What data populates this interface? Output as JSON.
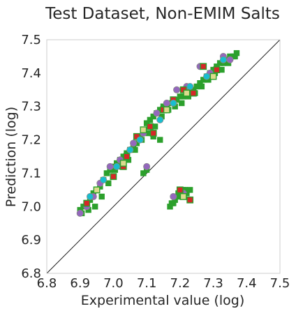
{
  "chart_data": {
    "type": "scatter",
    "title": "Test Dataset, Non-EMIM Salts",
    "xlabel": "Experimental value (log)",
    "ylabel": "Prediction (log)",
    "xlim": [
      6.8,
      7.5
    ],
    "ylim": [
      6.8,
      7.5
    ],
    "xticks": [
      "6.8",
      "6.9",
      "7.0",
      "7.1",
      "7.2",
      "7.3",
      "7.4",
      "7.5"
    ],
    "yticks": [
      "6.8",
      "6.9",
      "7.0",
      "7.1",
      "7.2",
      "7.3",
      "7.4",
      "7.5"
    ],
    "grid": false,
    "reference_line": {
      "x": [
        6.8,
        7.5
      ],
      "y": [
        6.8,
        7.5
      ]
    },
    "colors": {
      "green": "#2ca02c",
      "purple": "#9467bd",
      "red": "#d62728",
      "cyan": "#17becf",
      "lightyellow": "#dbdb8d"
    },
    "series": [
      {
        "color": "#2ca02c",
        "marker": "square",
        "x": [
          6.9,
          6.91,
          6.92,
          6.93,
          6.94,
          6.95,
          6.96,
          6.97,
          6.98,
          6.99,
          7.0,
          7.01,
          7.02,
          7.03,
          7.04,
          7.05,
          7.06,
          7.07,
          7.08,
          7.09,
          7.1,
          7.11,
          7.12,
          7.13,
          7.14,
          7.15,
          7.16,
          7.17,
          7.18,
          7.19,
          7.2,
          7.21,
          7.22,
          7.23,
          7.24,
          7.25,
          7.26,
          7.27,
          7.28,
          7.29,
          7.3,
          7.31,
          7.32,
          7.33,
          7.34,
          7.35,
          7.36,
          7.37,
          6.905,
          6.925,
          6.945,
          6.965,
          6.985,
          7.005,
          7.025,
          7.045,
          7.065,
          7.085,
          7.105,
          7.125,
          7.145,
          7.165,
          7.185,
          7.205,
          7.225,
          7.245,
          7.265,
          7.285,
          7.305,
          7.325,
          7.345,
          7.365,
          7.17,
          7.18,
          7.19,
          7.2,
          7.21,
          7.22,
          7.23,
          7.175,
          7.185,
          7.195,
          7.205,
          7.215,
          7.09,
          7.1,
          7.12,
          7.14
        ],
        "y": [
          6.99,
          7.0,
          7.01,
          7.02,
          7.04,
          7.05,
          7.06,
          7.08,
          7.1,
          7.11,
          7.12,
          7.13,
          7.14,
          7.15,
          7.16,
          7.17,
          7.18,
          7.19,
          7.21,
          7.23,
          7.25,
          7.26,
          7.27,
          7.28,
          7.29,
          7.3,
          7.3,
          7.31,
          7.32,
          7.32,
          7.33,
          7.33,
          7.34,
          7.35,
          7.35,
          7.36,
          7.37,
          7.38,
          7.39,
          7.4,
          7.41,
          7.42,
          7.43,
          7.43,
          7.44,
          7.45,
          7.45,
          7.46,
          6.98,
          6.99,
          7.0,
          7.03,
          7.07,
          7.11,
          7.12,
          7.14,
          7.17,
          7.2,
          7.22,
          7.24,
          7.27,
          7.29,
          7.3,
          7.31,
          7.33,
          7.34,
          7.36,
          7.38,
          7.4,
          7.41,
          7.43,
          7.45,
          7.0,
          7.01,
          7.03,
          7.04,
          7.05,
          7.04,
          7.05,
          7.01,
          7.02,
          7.04,
          7.03,
          7.05,
          7.1,
          7.11,
          7.21,
          7.2
        ]
      },
      {
        "color": "#9467bd",
        "marker": "circle",
        "x": [
          6.9,
          6.92,
          6.94,
          6.96,
          6.99,
          7.02,
          7.06,
          7.09,
          7.13,
          7.16,
          7.19,
          7.22,
          7.26,
          7.29,
          7.33,
          7.1,
          7.18,
          7.21,
          7.35
        ],
        "y": [
          6.98,
          7.0,
          7.03,
          7.07,
          7.12,
          7.14,
          7.19,
          7.22,
          7.28,
          7.31,
          7.35,
          7.36,
          7.42,
          7.4,
          7.45,
          7.12,
          7.03,
          7.04,
          7.44
        ]
      },
      {
        "color": "#d62728",
        "marker": "square",
        "x": [
          6.92,
          7.0,
          7.04,
          7.07,
          7.11,
          7.15,
          7.18,
          7.21,
          7.24,
          7.27,
          7.31,
          7.03,
          7.2,
          7.23,
          7.12
        ],
        "y": [
          7.01,
          7.09,
          7.15,
          7.21,
          7.24,
          7.29,
          7.32,
          7.35,
          7.34,
          7.42,
          7.41,
          7.12,
          7.05,
          7.02,
          7.22
        ]
      },
      {
        "color": "#17becf",
        "marker": "circle",
        "x": [
          6.93,
          6.97,
          7.01,
          7.05,
          7.08,
          7.14,
          7.18,
          7.23,
          7.28,
          7.33
        ],
        "y": [
          7.03,
          7.08,
          7.12,
          7.17,
          7.2,
          7.26,
          7.31,
          7.36,
          7.39,
          7.44
        ]
      },
      {
        "color": "#dbdb8d",
        "marker": "square",
        "x": [
          6.95,
          7.03,
          7.09,
          7.16,
          7.22,
          7.3,
          7.21
        ],
        "y": [
          7.05,
          7.13,
          7.23,
          7.29,
          7.34,
          7.39,
          7.03
        ]
      }
    ]
  }
}
